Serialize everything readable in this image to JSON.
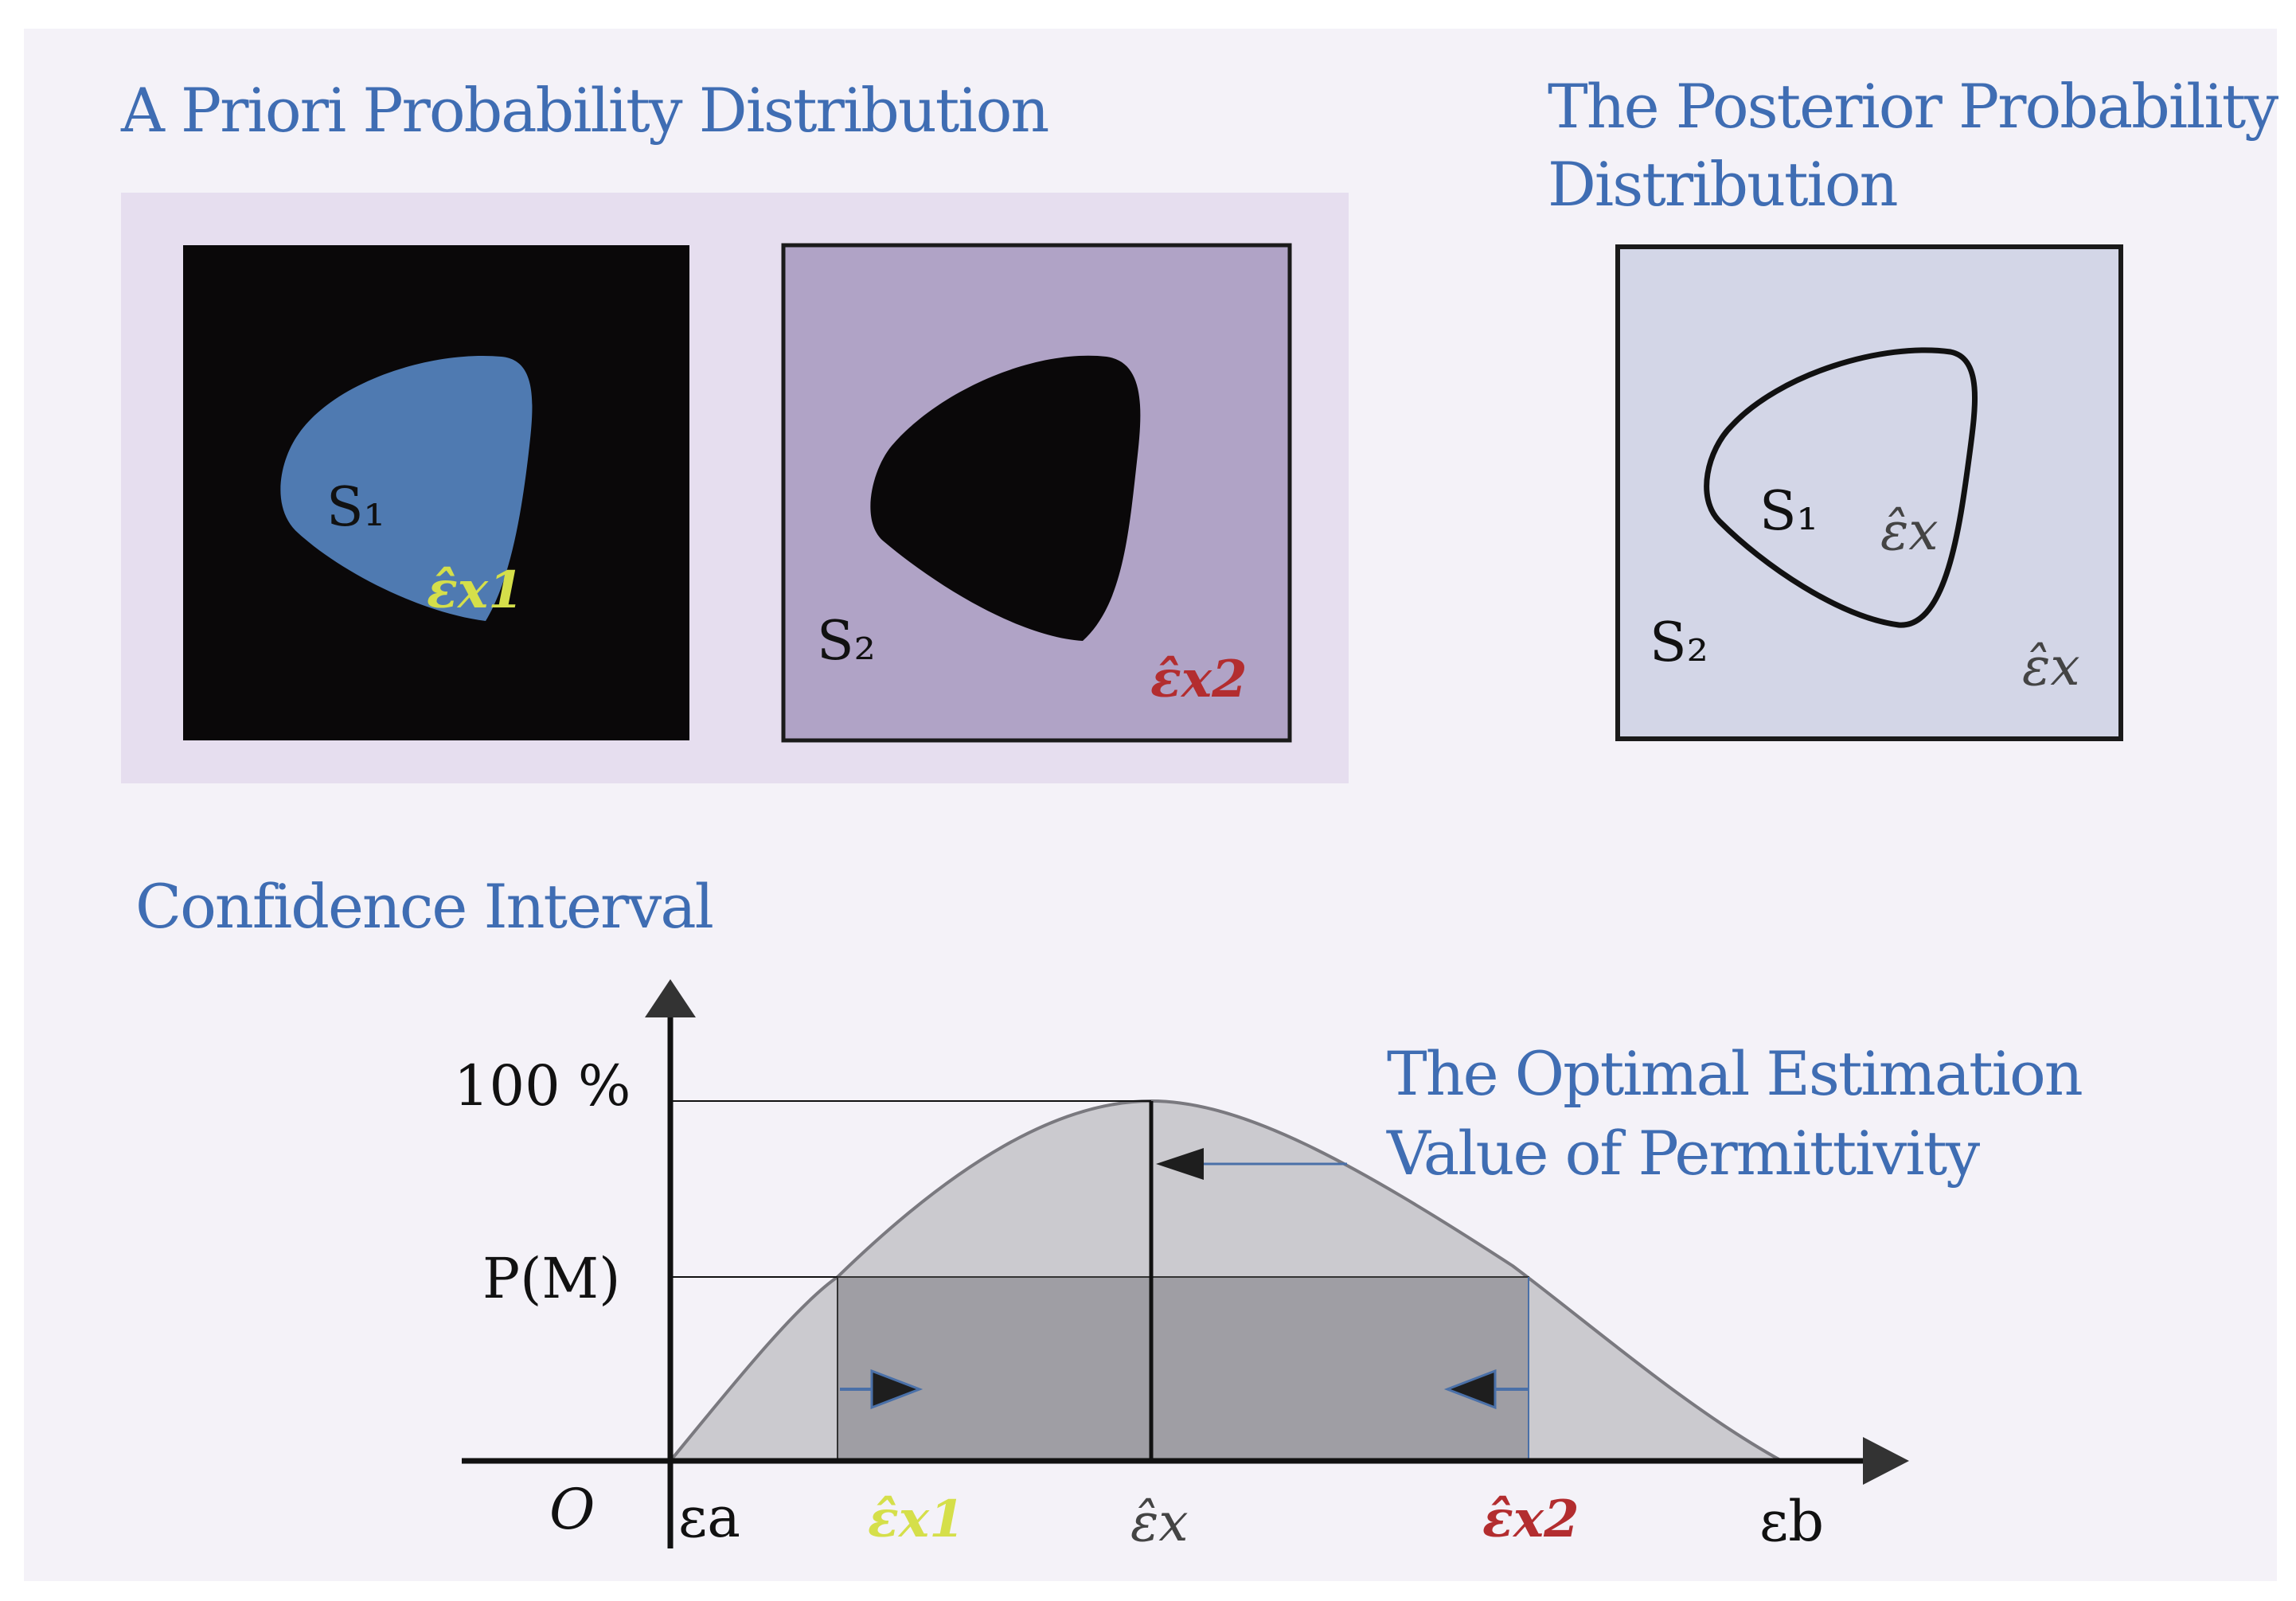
{
  "colors": {
    "page": "#f4f2f8",
    "heading": "#3f6db3",
    "prior_panel": "#e6deef",
    "box1_fill": "#0a0809",
    "s1_fill": "#4f7ab1",
    "box2_fill": "#b0a3c6",
    "blob2_fill": "#0a0809",
    "posterior_fill": "#d3d6e7",
    "est1": "#d5df4a",
    "est2": "#b32d2f",
    "est_neutral": "#444444",
    "curve_area": "#cbcacf",
    "interval_area": "#9f9ea4",
    "arrow_blue": "#4a70a8"
  },
  "headings": {
    "prior": "A Priori Probability Distribution",
    "posterior_line1": "The Posterior Probability",
    "posterior_line2": "Distribution",
    "confidence": "Confidence Interval",
    "optimal_line1": "The Optimal Estimation",
    "optimal_line2": "Value of Permittivity"
  },
  "prior_box1": {
    "region_label": "S₁",
    "estimate": "ε̂x1"
  },
  "prior_box2": {
    "region_label": "S₂",
    "estimate": "ε̂x2"
  },
  "posterior_box": {
    "inner_label": "S₁",
    "inner_estimate": "ε̂x",
    "outer_label": "S₂",
    "outer_estimate": "ε̂x"
  },
  "chart": {
    "y_labels": {
      "top": "100 %",
      "mid": "P(M)"
    },
    "origin": "O",
    "x_labels": {
      "a": "εa",
      "est1": "ε̂x1",
      "est": "ε̂x",
      "est2": "ε̂x2",
      "b": "εb"
    }
  }
}
